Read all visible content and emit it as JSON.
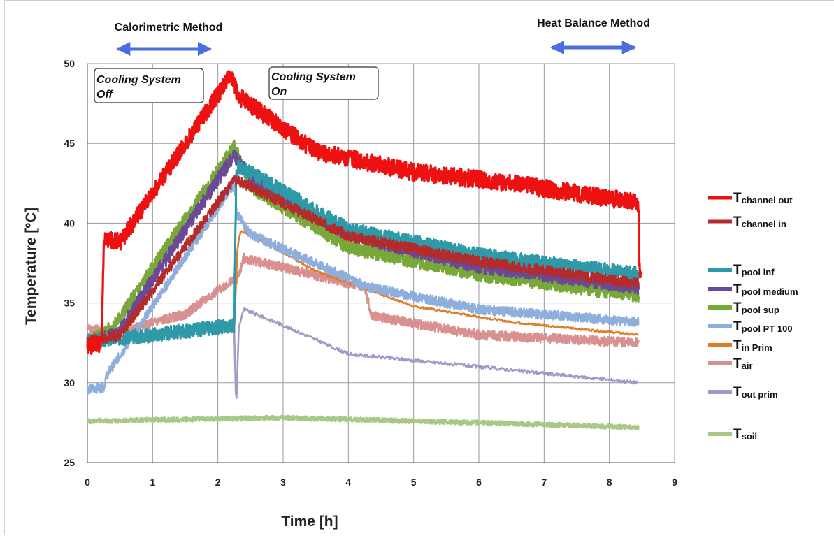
{
  "chart_data": {
    "type": "line",
    "xlabel": "Time  [h]",
    "ylabel": "Temperature  [ºC]",
    "xlim": [
      0,
      9
    ],
    "ylim": [
      25,
      50
    ],
    "x_ticks": [
      "0",
      "1",
      "2",
      "3",
      "4",
      "5",
      "6",
      "7",
      "8",
      "9"
    ],
    "y_ticks": [
      "25",
      "30",
      "35",
      "40",
      "45",
      "50"
    ],
    "grid": true,
    "legend_position": "right",
    "annotations": {
      "calorimetric": {
        "label": "Calorimetric Method",
        "x_range": [
          0.4,
          1.95
        ]
      },
      "heat_balance": {
        "label": "Heat Balance Method",
        "x_range": [
          7.05,
          8.45
        ]
      },
      "cooling_off": {
        "line1": "Cooling System",
        "line2": "Off"
      },
      "cooling_on": {
        "line1": "Cooling System",
        "line2": "On"
      }
    },
    "series": [
      {
        "name": "channel out",
        "sub": "channel out",
        "color": "#ee1111",
        "width": 3.2,
        "noise": 0.55,
        "seed": 1,
        "x": [
          0,
          0.22,
          0.25,
          0.45,
          0.5,
          2.2,
          2.25,
          2.3,
          3.5,
          5,
          6.5,
          8.4,
          8.45,
          8.46,
          8.48
        ],
        "y": [
          32.3,
          32.5,
          38.8,
          39,
          38.8,
          49.3,
          48.8,
          48,
          44.5,
          43.2,
          42.5,
          41.3,
          41.2,
          37,
          37
        ]
      },
      {
        "name": "channel in",
        "sub": "channel in",
        "color": "#b52b2b",
        "width": 2.2,
        "noise": 0.35,
        "seed": 2,
        "x": [
          0,
          0.5,
          2.25,
          2.5,
          4,
          6,
          8.45
        ],
        "y": [
          32.5,
          33,
          42.7,
          42.3,
          39.2,
          37.6,
          36.2
        ]
      },
      {
        "name": "pool inf",
        "sub": "pool inf",
        "color": "#2e9aa8",
        "width": 3,
        "noise": 0.45,
        "seed": 3,
        "x": [
          0,
          1,
          2.25,
          2.28,
          2.3,
          2.5,
          4,
          6,
          8.45
        ],
        "y": [
          32.6,
          33,
          33.6,
          42.8,
          43.5,
          43.2,
          39.6,
          38,
          36.8
        ]
      },
      {
        "name": "pool medium",
        "sub": "pool medium",
        "color": "#6a4a96",
        "width": 3,
        "noise": 0.45,
        "seed": 4,
        "x": [
          0,
          0.45,
          2.25,
          2.5,
          4,
          6,
          8.45
        ],
        "y": [
          32.5,
          33,
          44.3,
          42.8,
          39.3,
          37.3,
          36
        ]
      },
      {
        "name": "pool  sup",
        "sub": "pool  sup",
        "color": "#77a838",
        "width": 3,
        "noise": 0.45,
        "seed": 5,
        "x": [
          0,
          0.4,
          2.25,
          2.5,
          4,
          6,
          8.45
        ],
        "y": [
          32.5,
          33.5,
          44.8,
          42.3,
          38.5,
          36.8,
          35.5
        ]
      },
      {
        "name": "pool PT 100",
        "sub": "pool PT 100",
        "color": "#8eaedb",
        "width": 2.6,
        "noise": 0.3,
        "seed": 6,
        "x": [
          0,
          0.25,
          0.3,
          2.25,
          2.3,
          2.5,
          4.3,
          6,
          8.45
        ],
        "y": [
          29.6,
          29.7,
          30.5,
          42.5,
          40.5,
          39.3,
          36,
          34.6,
          33.8
        ]
      },
      {
        "name": "in Prim",
        "sub": "in Prim",
        "color": "#e07d2a",
        "width": 2.6,
        "noise": 0.06,
        "seed": 7,
        "x": [
          2.25,
          2.3,
          2.35,
          2.5,
          3.5,
          5,
          6.5,
          8.45
        ],
        "y": [
          33.3,
          38.5,
          39.5,
          39.3,
          37,
          34.8,
          33.8,
          33
        ]
      },
      {
        "name": "air",
        "sub": "air",
        "color": "#d99090",
        "width": 2.6,
        "noise": 0.3,
        "seed": 8,
        "x": [
          0,
          0.5,
          1.5,
          2.25,
          2.3,
          2.4,
          4.25,
          4.35,
          6,
          8.45
        ],
        "y": [
          33.4,
          33.2,
          34.3,
          36.5,
          36.5,
          37.8,
          36,
          34.2,
          33,
          32.5
        ]
      },
      {
        "name": "out prim",
        "sub": "out prim",
        "color": "#a598c6",
        "width": 2.6,
        "noise": 0.1,
        "seed": 9,
        "x": [
          2.25,
          2.28,
          2.32,
          2.4,
          3,
          4,
          6,
          8.45
        ],
        "y": [
          33.4,
          28.3,
          33.5,
          34.6,
          33.6,
          31.8,
          31,
          30
        ]
      },
      {
        "name": "soil",
        "sub": "soil",
        "color": "#a8c888",
        "width": 2.6,
        "noise": 0.15,
        "seed": 10,
        "x": [
          0,
          3,
          6,
          8.45
        ],
        "y": [
          27.6,
          27.8,
          27.5,
          27.2
        ]
      }
    ],
    "legend_symbol": "T"
  }
}
